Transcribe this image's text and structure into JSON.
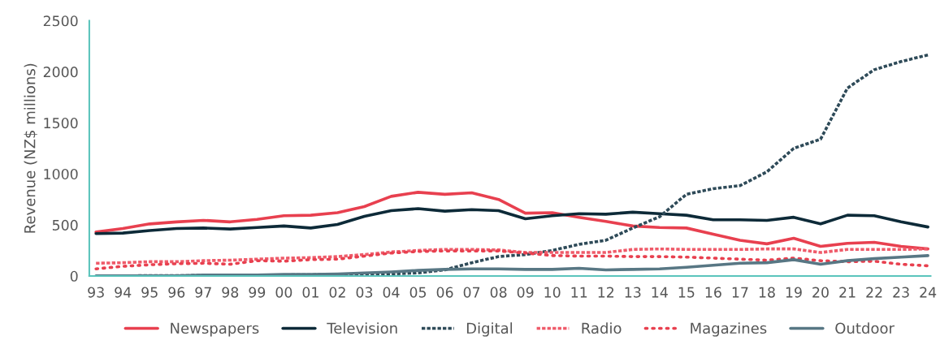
{
  "chart_data": {
    "type": "line",
    "ylabel": "Revenue (NZ$ millions)",
    "categories": [
      "93",
      "94",
      "95",
      "96",
      "97",
      "98",
      "99",
      "00",
      "01",
      "02",
      "03",
      "04",
      "05",
      "06",
      "07",
      "08",
      "09",
      "10",
      "11",
      "12",
      "13",
      "14",
      "15",
      "16",
      "17",
      "18",
      "19",
      "20",
      "21",
      "22",
      "23",
      "24"
    ],
    "series": [
      {
        "name": "Newspapers",
        "color": "#e8404f",
        "line_style": "solid",
        "values": [
          430,
          465,
          510,
          530,
          545,
          530,
          555,
          590,
          595,
          620,
          680,
          780,
          820,
          800,
          815,
          750,
          615,
          620,
          575,
          535,
          490,
          475,
          470,
          410,
          350,
          315,
          370,
          290,
          320,
          330,
          290,
          265
        ]
      },
      {
        "name": "Television",
        "color": "#0d2a38",
        "line_style": "solid",
        "values": [
          415,
          420,
          445,
          465,
          470,
          460,
          475,
          490,
          470,
          505,
          585,
          640,
          660,
          635,
          650,
          640,
          560,
          590,
          610,
          605,
          625,
          610,
          595,
          550,
          550,
          545,
          575,
          510,
          595,
          590,
          530,
          480
        ]
      },
      {
        "name": "Digital",
        "color": "#2e4a58",
        "line_style": "dashed",
        "values": [
          2,
          2,
          3,
          4,
          5,
          6,
          8,
          10,
          12,
          15,
          18,
          20,
          30,
          60,
          130,
          190,
          210,
          250,
          310,
          350,
          470,
          580,
          800,
          855,
          885,
          1020,
          1250,
          1340,
          1840,
          2020,
          2100,
          2165
        ]
      },
      {
        "name": "Radio",
        "color": "#ef5b6a",
        "line_style": "dashed",
        "values": [
          125,
          130,
          140,
          140,
          150,
          155,
          165,
          175,
          180,
          190,
          210,
          235,
          250,
          260,
          260,
          255,
          230,
          230,
          230,
          230,
          260,
          265,
          260,
          260,
          260,
          265,
          265,
          230,
          260,
          260,
          260,
          265
        ]
      },
      {
        "name": "Magazines",
        "color": "#e8404f",
        "line_style": "dotted",
        "values": [
          70,
          95,
          110,
          120,
          125,
          115,
          150,
          145,
          160,
          165,
          195,
          225,
          240,
          245,
          245,
          245,
          225,
          200,
          195,
          195,
          190,
          190,
          185,
          175,
          165,
          155,
          175,
          150,
          140,
          145,
          115,
          100
        ]
      },
      {
        "name": "Outdoor",
        "color": "#587784",
        "line_style": "solid",
        "values": [
          2,
          2,
          2,
          2,
          10,
          10,
          10,
          15,
          15,
          20,
          30,
          40,
          55,
          65,
          70,
          70,
          65,
          65,
          75,
          60,
          65,
          70,
          85,
          105,
          125,
          130,
          160,
          115,
          150,
          170,
          185,
          200
        ]
      }
    ],
    "ylim": [
      0,
      2500
    ],
    "yticks": [
      0,
      500,
      1000,
      1500,
      2000,
      2500
    ],
    "grid": false,
    "legend": "bottom",
    "marker": "none"
  }
}
